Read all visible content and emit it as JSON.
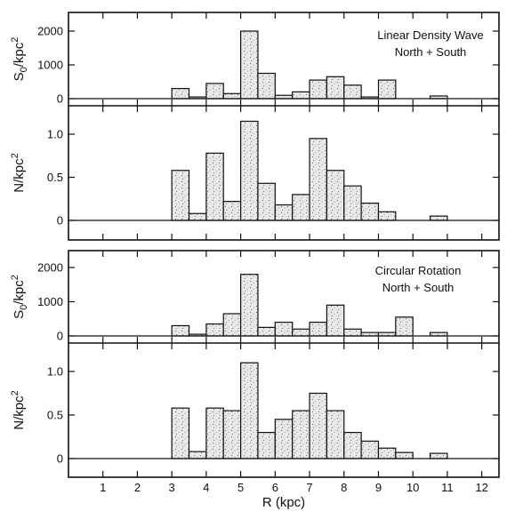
{
  "chart_data": [
    {
      "type": "bar",
      "panel": "top",
      "ylabel": "S0/kpc2",
      "annotation": [
        "Linear Density Wave",
        "North + South"
      ],
      "ylim": [
        -200,
        2300
      ],
      "yticks": [
        0,
        1000,
        2000
      ],
      "ytick_labels": [
        "0",
        "1000",
        "2000"
      ],
      "bin_edges": [
        3.0,
        3.5,
        4.0,
        4.5,
        5.0,
        5.5,
        6.0,
        6.5,
        7.0,
        7.5,
        8.0,
        8.5,
        9.0,
        9.5,
        10.0,
        10.5,
        11.0
      ],
      "values": [
        300,
        50,
        450,
        150,
        2000,
        750,
        100,
        200,
        550,
        650,
        400,
        50,
        550,
        0,
        0,
        80
      ]
    },
    {
      "type": "bar",
      "panel": "top",
      "ylabel": "N/kpc2",
      "ylim": [
        -0.15,
        1.3
      ],
      "yticks": [
        0,
        0.5,
        1.0
      ],
      "ytick_labels": [
        "0",
        "0.5",
        "1.0"
      ],
      "bin_edges": [
        3.0,
        3.5,
        4.0,
        4.5,
        5.0,
        5.5,
        6.0,
        6.5,
        7.0,
        7.5,
        8.0,
        8.5,
        9.0,
        9.5,
        10.0,
        10.5,
        11.0
      ],
      "values": [
        0.58,
        0.08,
        0.78,
        0.22,
        1.15,
        0.43,
        0.18,
        0.3,
        0.95,
        0.58,
        0.4,
        0.2,
        0.1,
        0,
        0,
        0.05
      ]
    },
    {
      "type": "bar",
      "panel": "bottom",
      "ylabel": "S0/kpc2",
      "annotation": [
        "Circular Rotation",
        "North + South"
      ],
      "ylim": [
        -200,
        2300
      ],
      "yticks": [
        0,
        1000,
        2000
      ],
      "ytick_labels": [
        "0",
        "1000",
        "2000"
      ],
      "bin_edges": [
        3.0,
        3.5,
        4.0,
        4.5,
        5.0,
        5.5,
        6.0,
        6.5,
        7.0,
        7.5,
        8.0,
        8.5,
        9.0,
        9.5,
        10.0,
        10.5,
        11.0
      ],
      "values": [
        300,
        50,
        350,
        650,
        1800,
        250,
        400,
        200,
        400,
        900,
        200,
        100,
        100,
        550,
        0,
        100
      ]
    },
    {
      "type": "bar",
      "panel": "bottom",
      "ylabel": "N/kpc2",
      "xlabel": "R (kpc)",
      "ylim": [
        -0.15,
        1.3
      ],
      "yticks": [
        0,
        0.5,
        1.0
      ],
      "ytick_labels": [
        "0",
        "0.5",
        "1.0"
      ],
      "xlim": [
        0,
        12.5
      ],
      "xticks": [
        1,
        2,
        3,
        4,
        5,
        6,
        7,
        8,
        9,
        10,
        11,
        12
      ],
      "xtick_labels": [
        "1",
        "2",
        "3",
        "4",
        "5",
        "6",
        "7",
        "8",
        "9",
        "10",
        "11",
        "12"
      ],
      "bin_edges": [
        3.0,
        3.5,
        4.0,
        4.5,
        5.0,
        5.5,
        6.0,
        6.5,
        7.0,
        7.5,
        8.0,
        8.5,
        9.0,
        9.5,
        10.0,
        10.5,
        11.0
      ],
      "values": [
        0.58,
        0.08,
        0.58,
        0.55,
        1.1,
        0.3,
        0.45,
        0.55,
        0.75,
        0.55,
        0.3,
        0.2,
        0.12,
        0.07,
        0,
        0.06
      ]
    }
  ]
}
